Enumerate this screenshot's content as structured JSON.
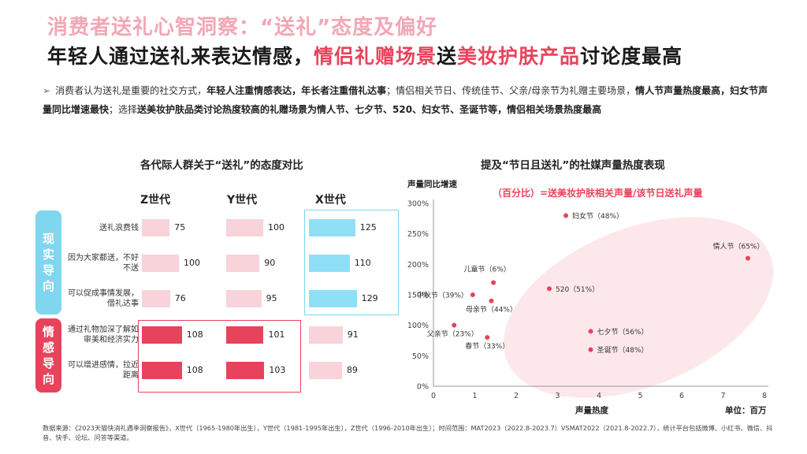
{
  "header": {
    "title_line1": "消费者送礼心智洞察：“送礼”态度及偏好",
    "title_line2_a": "年轻人通过送礼来表达情感，",
    "title_line2_b": "情侣礼赠场景",
    "title_line2_c": "送",
    "title_line2_d": "美妆护肤产品",
    "title_line2_e": "讨论度最高"
  },
  "description": {
    "p1": "消费者认为送礼是重要的社交方式，",
    "p2": "年轻人注重情感表达，年长者注重借礼达事",
    "p3": "；情侣相关节日、传统佳节、父亲/母亲节为礼赠主要场景，",
    "p4": "情人节声量热度最高，妇女节声量同比增速最快",
    "p5": "；选择",
    "p6": "送美妆护肤品类讨论热度较高的礼赠场景为情人节、七夕节、520、妇女节、圣诞节等，情侣相关场景热度最高"
  },
  "left_chart": {
    "title": "各代际人群关于“送礼”的态度对比",
    "side_labels": {
      "practical": [
        "现",
        "实",
        "导",
        "向"
      ],
      "emotional": [
        "情",
        "感",
        "导",
        "向"
      ]
    },
    "colors": {
      "z_y_light": "#f9d3da",
      "z_y_dark": "#e8435c",
      "x_blue": "#8fe0f7",
      "x_light": "#f9d3da",
      "blue_box": "#7fd6ef",
      "red_box": "#e8435c"
    }
  },
  "right_chart": {
    "title": "提及“节日且送礼”的社媒声量热度表现",
    "note": "（百分比）=送美妆护肤相关声量/该节日送礼声量",
    "ylabel": "声量同比增速",
    "xlabel": "声量热度",
    "unit": "单位：百万"
  },
  "chart_data": [
    {
      "type": "bar",
      "orientation": "horizontal",
      "categories": [
        "送礼浪费钱",
        "因为大家都送，不好不送",
        "可以促成事情发展，借礼达事",
        "通过礼物加深了解如审美和经济实力",
        "可以增进感情，拉近距离"
      ],
      "category_lines": [
        [
          "送礼浪费钱"
        ],
        [
          "因为大家都送，不好",
          "不送"
        ],
        [
          "可以促成事情发展，",
          "借礼达事"
        ],
        [
          "通过礼物加深了解如",
          "审美和经济实力"
        ],
        [
          "可以增进感情，拉近",
          "距离"
        ]
      ],
      "series": [
        {
          "name": "Z世代",
          "values": [
            75,
            100,
            76,
            108,
            108
          ]
        },
        {
          "name": "Y世代",
          "values": [
            100,
            90,
            95,
            101,
            103
          ]
        },
        {
          "name": "X世代",
          "values": [
            125,
            110,
            129,
            91,
            89
          ]
        }
      ]
    },
    {
      "type": "scatter",
      "xlim": [
        0,
        8
      ],
      "ylim": [
        0,
        300
      ],
      "xticks": [
        "0",
        "1",
        "2",
        "3",
        "4",
        "5",
        "6",
        "7",
        "8"
      ],
      "yticks": [
        "0%",
        "50%",
        "100%",
        "150%",
        "200%",
        "250%",
        "300%"
      ],
      "points": [
        {
          "label": "妇女节（48%）",
          "x": 3.2,
          "y": 280,
          "pos": "right"
        },
        {
          "label": "情人节（65%）",
          "x": 7.6,
          "y": 210,
          "pos": "above-left"
        },
        {
          "label": "儿童节（6%）",
          "x": 1.45,
          "y": 170,
          "pos": "above"
        },
        {
          "label": "中秋节（39%）",
          "x": 0.95,
          "y": 150,
          "pos": "left"
        },
        {
          "label": "母亲节（44%）",
          "x": 1.4,
          "y": 140,
          "pos": "below"
        },
        {
          "label": "520（51%）",
          "x": 2.8,
          "y": 160,
          "pos": "right"
        },
        {
          "label": "父亲节（23%）",
          "x": 0.5,
          "y": 100,
          "pos": "below-left"
        },
        {
          "label": "春节（33%）",
          "x": 1.3,
          "y": 80,
          "pos": "below"
        },
        {
          "label": "七夕节（56%）",
          "x": 3.8,
          "y": 90,
          "pos": "right"
        },
        {
          "label": "圣诞节（48%）",
          "x": 3.8,
          "y": 60,
          "pos": "right"
        }
      ]
    }
  ],
  "source": "数据来源：《2023天猫快消礼遇季洞察报告》，X世代（1965-1980年出生），Y世代（1981-1995年出生），Z世代（1996-2010年出生）；时间范围：MAT2023（2022.8-2023.7）VSMAT2022（2021.8-2022.7），统计平台包括微博、小红书、微信、抖音、快手、论坛、问答等渠道。"
}
